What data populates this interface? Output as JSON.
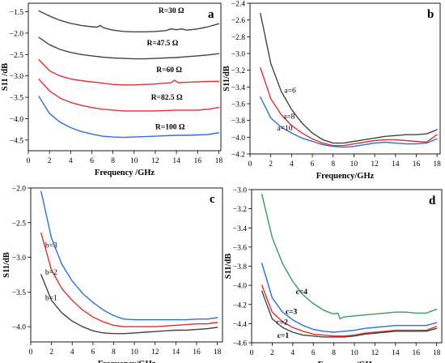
{
  "chart_data": [
    {
      "type": "line",
      "panel": "a",
      "xlabel": "Frequency /GHz",
      "ylabel": "S11 /dB",
      "xlim": [
        0,
        18.2
      ],
      "ylim": [
        -4.75,
        -1.3
      ],
      "xticks": [
        0,
        2,
        4,
        6,
        8,
        10,
        12,
        14,
        16,
        18
      ],
      "yticks": [
        -1.5,
        -2.0,
        -2.5,
        -3.0,
        -3.5,
        -4.0,
        -4.5
      ],
      "series": [
        {
          "name": "R=30 Ω",
          "color": "#444444",
          "label_pos": [
            12.3,
            -1.53
          ],
          "x": [
            1,
            2,
            3,
            4,
            5,
            6,
            6.5,
            6.8,
            7.1,
            7.5,
            8,
            9,
            10,
            11,
            12,
            13,
            13.5,
            14,
            14.5,
            15,
            16,
            17,
            18
          ],
          "y": [
            -1.48,
            -1.6,
            -1.7,
            -1.77,
            -1.82,
            -1.85,
            -1.86,
            -1.82,
            -1.87,
            -1.9,
            -1.93,
            -1.96,
            -1.97,
            -1.97,
            -1.96,
            -1.94,
            -1.9,
            -1.92,
            -1.9,
            -1.93,
            -1.9,
            -1.85,
            -1.78
          ]
        },
        {
          "name": "R=47.5 Ω",
          "color": "#444444",
          "label_pos": [
            11.2,
            -2.29
          ],
          "x": [
            1,
            2,
            3,
            4,
            5,
            6,
            7,
            8,
            9,
            10,
            11,
            12,
            13,
            14,
            15,
            16,
            17,
            18
          ],
          "y": [
            -2.1,
            -2.27,
            -2.38,
            -2.45,
            -2.5,
            -2.53,
            -2.56,
            -2.58,
            -2.59,
            -2.6,
            -2.6,
            -2.59,
            -2.58,
            -2.57,
            -2.55,
            -2.53,
            -2.51,
            -2.48
          ]
        },
        {
          "name": "R=60 Ω",
          "color": "#e03030",
          "label_pos": [
            12.1,
            -2.91
          ],
          "x": [
            1,
            2,
            3,
            4,
            5,
            6,
            7,
            8,
            9,
            10,
            11,
            12,
            13,
            13.5,
            13.8,
            14.2,
            15,
            16,
            17,
            18
          ],
          "y": [
            -2.62,
            -2.88,
            -3.0,
            -3.07,
            -3.11,
            -3.14,
            -3.17,
            -3.2,
            -3.21,
            -3.21,
            -3.2,
            -3.19,
            -3.17,
            -3.16,
            -3.1,
            -3.16,
            -3.15,
            -3.14,
            -3.13,
            -3.13
          ]
        },
        {
          "name": "R=82.5 Ω",
          "color": "#e03030",
          "label_pos": [
            11.6,
            -3.56
          ],
          "x": [
            1,
            2,
            3,
            4,
            5,
            6,
            7,
            8,
            9,
            10,
            11,
            12,
            13,
            14,
            15,
            16,
            17,
            18
          ],
          "y": [
            -3.08,
            -3.35,
            -3.52,
            -3.62,
            -3.69,
            -3.74,
            -3.78,
            -3.8,
            -3.82,
            -3.82,
            -3.82,
            -3.82,
            -3.81,
            -3.8,
            -3.8,
            -3.8,
            -3.78,
            -3.74
          ]
        },
        {
          "name": "R=100 Ω",
          "color": "#2e6fd8",
          "label_pos": [
            12.0,
            -4.25
          ],
          "x": [
            1,
            2,
            3,
            4,
            5,
            6,
            7,
            8,
            9,
            10,
            11,
            12,
            13,
            14,
            15,
            16,
            17,
            18
          ],
          "y": [
            -3.48,
            -3.88,
            -4.08,
            -4.21,
            -4.3,
            -4.36,
            -4.41,
            -4.43,
            -4.44,
            -4.43,
            -4.42,
            -4.41,
            -4.4,
            -4.39,
            -4.39,
            -4.38,
            -4.37,
            -4.33
          ]
        }
      ]
    },
    {
      "type": "line",
      "panel": "b",
      "xlabel": "Frequency/GHz",
      "ylabel": "S11/dB",
      "xlim": [
        0,
        18.3
      ],
      "ylim": [
        -4.2,
        -2.4
      ],
      "xticks": [
        0,
        2,
        4,
        6,
        8,
        10,
        12,
        14,
        16,
        18
      ],
      "yticks": [
        -2.4,
        -2.6,
        -2.8,
        -3.0,
        -3.2,
        -3.4,
        -3.6,
        -3.8,
        -4.0,
        -4.2
      ],
      "series": [
        {
          "name": "a=6",
          "color": "#444444",
          "label_pos": [
            3.3,
            -3.47
          ],
          "x": [
            1,
            2,
            3,
            4,
            5,
            6,
            7,
            8,
            9,
            10,
            11,
            12,
            13,
            14,
            15,
            16,
            17,
            18
          ],
          "y": [
            -2.52,
            -3.12,
            -3.45,
            -3.67,
            -3.83,
            -3.95,
            -4.03,
            -4.07,
            -4.07,
            -4.05,
            -4.03,
            -4.01,
            -3.99,
            -3.98,
            -3.97,
            -3.97,
            -3.96,
            -3.91
          ]
        },
        {
          "name": "a=8",
          "color": "#e03030",
          "label_pos": [
            3.2,
            -3.78
          ],
          "x": [
            1,
            2,
            3,
            4,
            5,
            6,
            7,
            8,
            9,
            10,
            11,
            12,
            13,
            14,
            15,
            16,
            17,
            18
          ],
          "y": [
            -3.17,
            -3.54,
            -3.73,
            -3.86,
            -3.95,
            -4.02,
            -4.07,
            -4.1,
            -4.1,
            -4.08,
            -4.06,
            -4.04,
            -4.03,
            -4.03,
            -4.04,
            -4.05,
            -4.06,
            -3.97
          ]
        },
        {
          "name": "a=10",
          "color": "#2e6fd8",
          "label_pos": [
            2.6,
            -3.92
          ],
          "x": [
            1,
            2,
            3,
            4,
            5,
            6,
            7,
            8,
            9,
            10,
            11,
            12,
            13,
            14,
            15,
            16,
            17,
            18
          ],
          "y": [
            -3.52,
            -3.77,
            -3.88,
            -3.95,
            -4.01,
            -4.05,
            -4.09,
            -4.11,
            -4.12,
            -4.11,
            -4.09,
            -4.07,
            -4.06,
            -4.07,
            -4.08,
            -4.08,
            -4.07,
            -4.02
          ]
        }
      ]
    },
    {
      "type": "line",
      "panel": "c",
      "xlabel": "Frequency/GHz",
      "ylabel": "S11/dB",
      "xlim": [
        0,
        18.5
      ],
      "ylim": [
        -4.22,
        -2.0
      ],
      "xticks": [
        0,
        2,
        4,
        6,
        8,
        10,
        12,
        14,
        16,
        18
      ],
      "yticks": [
        -2.0,
        -2.5,
        -3.0,
        -3.5,
        -4.0
      ],
      "series": [
        {
          "name": "b=3",
          "color": "#2e6fd8",
          "label_pos": [
            1.4,
            -2.86
          ],
          "x": [
            1,
            2,
            3,
            4,
            5,
            6,
            7,
            8,
            9,
            10,
            11,
            12,
            13,
            14,
            15,
            16,
            17,
            18
          ],
          "y": [
            -2.05,
            -2.72,
            -3.1,
            -3.34,
            -3.52,
            -3.65,
            -3.76,
            -3.84,
            -3.89,
            -3.9,
            -3.9,
            -3.9,
            -3.9,
            -3.9,
            -3.9,
            -3.89,
            -3.89,
            -3.87
          ]
        },
        {
          "name": "b=2",
          "color": "#e03030",
          "label_pos": [
            1.4,
            -3.25
          ],
          "x": [
            1,
            2,
            3,
            4,
            5,
            6,
            7,
            8,
            9,
            10,
            11,
            12,
            13,
            14,
            15,
            16,
            17,
            18
          ],
          "y": [
            -2.65,
            -3.18,
            -3.45,
            -3.62,
            -3.76,
            -3.86,
            -3.93,
            -3.98,
            -4.0,
            -4.0,
            -4.0,
            -4.0,
            -3.99,
            -3.98,
            -3.97,
            -3.96,
            -3.96,
            -3.94
          ]
        },
        {
          "name": "b=1",
          "color": "#444444",
          "label_pos": [
            1.4,
            -3.62
          ],
          "x": [
            1,
            2,
            3,
            4,
            5,
            6,
            7,
            8,
            9,
            10,
            11,
            12,
            13,
            14,
            15,
            16,
            17,
            18
          ],
          "y": [
            -3.25,
            -3.62,
            -3.8,
            -3.92,
            -4.0,
            -4.06,
            -4.09,
            -4.1,
            -4.1,
            -4.09,
            -4.08,
            -4.07,
            -4.06,
            -4.05,
            -4.05,
            -4.04,
            -4.03,
            -4.01
          ]
        }
      ]
    },
    {
      "type": "line",
      "panel": "d",
      "xlabel": "Frequency/GHz",
      "ylabel": "S11/dB",
      "xlim": [
        0,
        18.5
      ],
      "ylim": [
        -4.6,
        -3.0
      ],
      "xticks": [
        0,
        2,
        4,
        6,
        8,
        10,
        12,
        14,
        16,
        18
      ],
      "yticks": [
        -3.0,
        -3.2,
        -3.4,
        -3.6,
        -3.8,
        -4.0,
        -4.2,
        -4.4,
        -4.6
      ],
      "series": [
        {
          "name": "c=4",
          "color": "#3a9a5a",
          "label_pos": [
            4.3,
            -4.09
          ],
          "x": [
            1,
            2,
            3,
            4,
            5,
            6,
            7,
            8,
            8.4,
            8.6,
            9,
            10,
            11,
            12,
            13,
            14,
            15,
            16,
            17,
            18
          ],
          "y": [
            -3.05,
            -3.5,
            -3.77,
            -3.96,
            -4.1,
            -4.19,
            -4.26,
            -4.3,
            -4.29,
            -4.35,
            -4.33,
            -4.32,
            -4.31,
            -4.3,
            -4.29,
            -4.28,
            -4.28,
            -4.29,
            -4.29,
            -4.25
          ]
        },
        {
          "name": "c=3",
          "color": "#2e6fd8",
          "label_pos": [
            3.3,
            -4.3
          ],
          "x": [
            1,
            2,
            3,
            4,
            5,
            6,
            7,
            8,
            9,
            10,
            11,
            12,
            13,
            14,
            15,
            16,
            17,
            18
          ],
          "y": [
            -3.77,
            -4.13,
            -4.28,
            -4.36,
            -4.42,
            -4.46,
            -4.48,
            -4.49,
            -4.48,
            -4.47,
            -4.45,
            -4.44,
            -4.43,
            -4.42,
            -4.42,
            -4.42,
            -4.42,
            -4.39
          ]
        },
        {
          "name": "c=2",
          "color": "#e03030",
          "label_pos": [
            2.4,
            -4.41
          ],
          "x": [
            1,
            2,
            3,
            4,
            5,
            6,
            7,
            8,
            9,
            10,
            11,
            12,
            13,
            14,
            15,
            16,
            17,
            18
          ],
          "y": [
            -4.0,
            -4.28,
            -4.38,
            -4.44,
            -4.48,
            -4.51,
            -4.52,
            -4.53,
            -4.53,
            -4.52,
            -4.5,
            -4.49,
            -4.48,
            -4.47,
            -4.47,
            -4.47,
            -4.47,
            -4.43
          ]
        },
        {
          "name": "c=1",
          "color": "#444444",
          "label_pos": [
            2.5,
            -4.55
          ],
          "x": [
            1,
            2,
            3,
            4,
            5,
            6,
            7,
            8,
            9,
            10,
            11,
            12,
            13,
            14,
            15,
            16,
            17,
            18
          ],
          "y": [
            -4.06,
            -4.35,
            -4.44,
            -4.49,
            -4.52,
            -4.53,
            -4.54,
            -4.54,
            -4.54,
            -4.53,
            -4.51,
            -4.5,
            -4.49,
            -4.48,
            -4.48,
            -4.48,
            -4.48,
            -4.45
          ]
        }
      ]
    }
  ]
}
